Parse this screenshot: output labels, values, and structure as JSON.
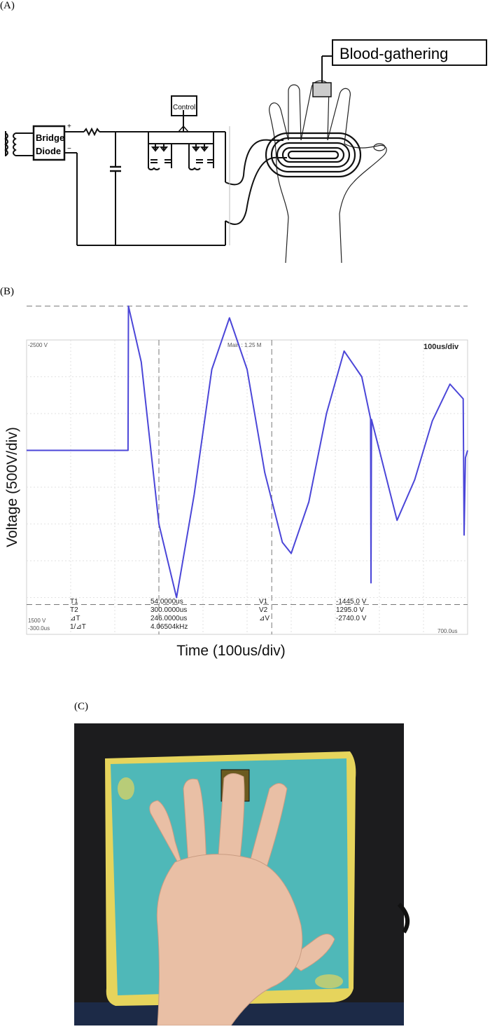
{
  "panels": {
    "a": {
      "label": "(A)"
    },
    "b": {
      "label": "(B)"
    },
    "c": {
      "label": "(C)"
    }
  },
  "circuit": {
    "bridge_line1": "Bridge",
    "bridge_line2": "Diode",
    "control_label": "Control",
    "plus_sign": "+",
    "minus_sign": "−",
    "callout_label": "Blood-gathering"
  },
  "scope": {
    "top_left": "-2500 V",
    "top_center": "Main : 1.25 M",
    "top_right": "100us/div",
    "bottom_left_voltage": "1500 V",
    "bottom_left_time": "-300.0us",
    "bottom_right_time": "700.0us",
    "ylabel": "Voltage (500V/div)",
    "xlabel": "Time (100us/div)",
    "trace_color": "#4b46d8",
    "readouts": [
      {
        "name": "T1",
        "value": "54.0000us",
        "name2": "V1",
        "value2": "-1445.0 V"
      },
      {
        "name": "T2",
        "value": "300.0000us",
        "name2": "V2",
        "value2": "1295.0 V"
      },
      {
        "name": "⊿T",
        "value": "246.0000us",
        "name2": "⊿V",
        "value2": "-2740.0 V"
      },
      {
        "name": "1/⊿T",
        "value": "4.06504kHz",
        "name2": "",
        "value2": ""
      }
    ]
  },
  "chart_data": {
    "type": "line",
    "xlabel": "Time (100us/div)",
    "ylabel": "Voltage (500V/div)",
    "xlim": [
      -300,
      700
    ],
    "ylim": [
      -2500,
      1500
    ],
    "grid": true,
    "series": [
      {
        "values_note": "",
        "x": [
          -300,
          -70,
          -69,
          -40,
          0,
          40,
          80,
          120,
          160,
          200,
          240,
          280,
          300,
          340,
          380,
          420,
          460,
          480,
          481,
          482,
          500,
          540,
          580,
          620,
          660,
          690,
          692,
          695,
          700
        ],
        "y": [
          0,
          0,
          1960,
          1200,
          -1000,
          -2000,
          -600,
          1100,
          1800,
          1100,
          -300,
          -1250,
          -1400,
          -700,
          500,
          1350,
          1000,
          430,
          -1800,
          420,
          0,
          -950,
          -400,
          400,
          900,
          700,
          -1150,
          -100,
          0
        ]
      }
    ]
  },
  "photo": {
    "caption": ""
  }
}
